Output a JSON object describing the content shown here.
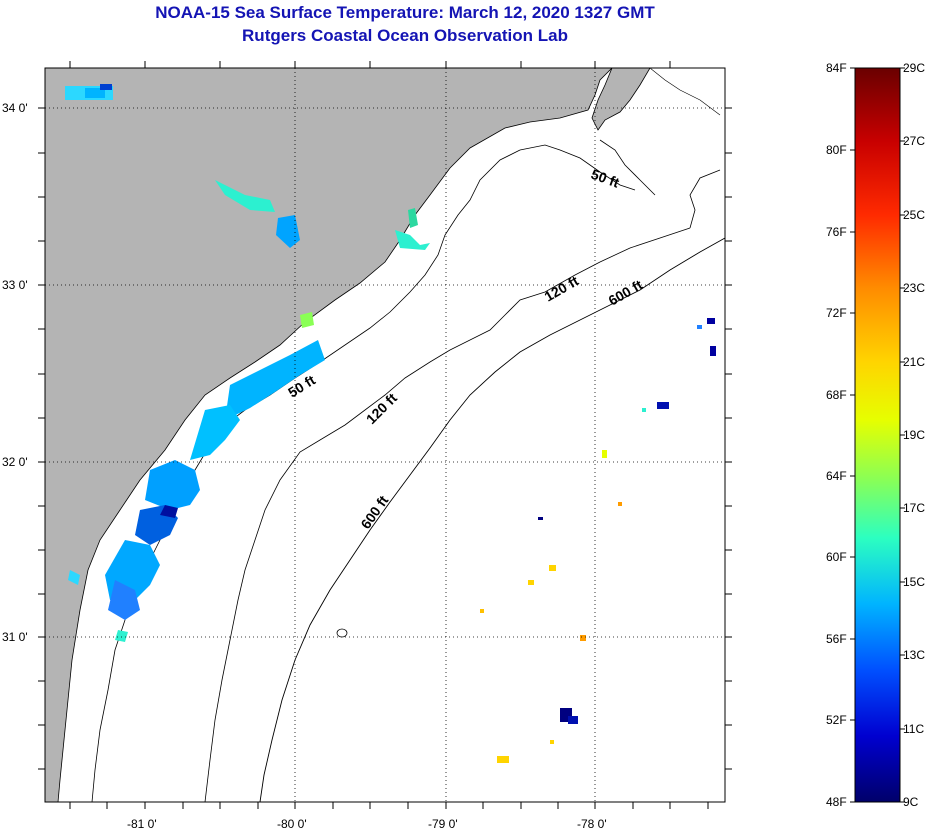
{
  "title": {
    "line1": "NOAA-15 Sea Surface Temperature:  March 12, 2020 1327 GMT",
    "line2": "Rutgers Coastal Ocean Observation Lab"
  },
  "map": {
    "lat_labels": [
      "34 0'",
      "33 0'",
      "32 0'",
      "31 0'"
    ],
    "lon_labels": [
      "-81 0'",
      "-80 0'",
      "-79 0'",
      "-78 0'"
    ],
    "contour_labels": {
      "c50_north": "50 ft",
      "c50_south": "50 ft",
      "c120_north": "120 ft",
      "c120_south": "120 ft",
      "c600_north": "600 ft",
      "c600_south": "600 ft"
    },
    "colors": {
      "land": "#b4b4b4",
      "ocean": "#ffffff",
      "grid": "#000000"
    }
  },
  "colorbar": {
    "fahrenheit_labels": [
      "84F",
      "80F",
      "76F",
      "72F",
      "68F",
      "64F",
      "60F",
      "56F",
      "52F",
      "48F"
    ],
    "celsius_labels": [
      "29C",
      "27C",
      "25C",
      "23C",
      "21C",
      "19C",
      "17C",
      "15C",
      "13C",
      "11C",
      "9C"
    ],
    "gradient_stops": [
      "#6a0000",
      "#c80000",
      "#ff2a00",
      "#ff8c00",
      "#ffd400",
      "#e6ff00",
      "#8aff55",
      "#2cffc0",
      "#00b4ff",
      "#0050ff",
      "#0000d0",
      "#00006a"
    ]
  }
}
